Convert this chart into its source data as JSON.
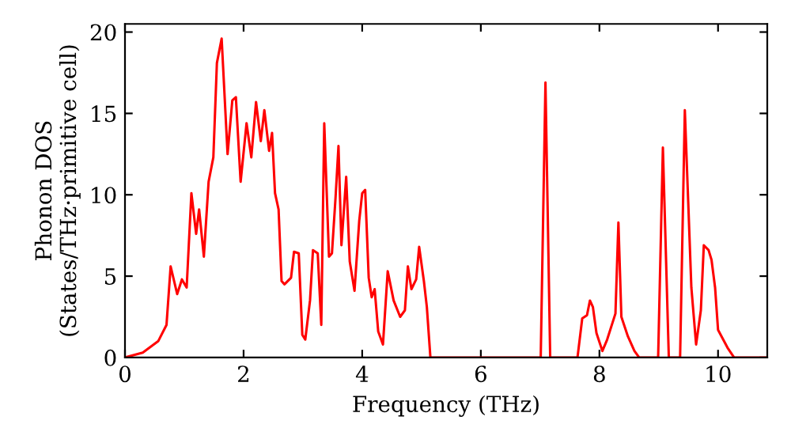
{
  "chart_data": {
    "type": "line",
    "xlabel": "Frequency (THz)",
    "ylabel": "Phonon DOS\n(States/THz·primitive cell)",
    "xlim": [
      0,
      10.83
    ],
    "ylim": [
      0,
      20.5
    ],
    "xticks": [
      0,
      2,
      4,
      6,
      8,
      10
    ],
    "yticks": [
      0,
      5,
      10,
      15,
      20
    ],
    "grid": false,
    "legend": false,
    "marker": "none",
    "line_style": "solid",
    "x": [
      0,
      0.3,
      0.56,
      0.7,
      0.77,
      0.88,
      0.96,
      1.04,
      1.12,
      1.2,
      1.25,
      1.33,
      1.41,
      1.49,
      1.55,
      1.63,
      1.73,
      1.81,
      1.87,
      1.95,
      2.05,
      2.13,
      2.21,
      2.29,
      2.35,
      2.43,
      2.48,
      2.53,
      2.59,
      2.64,
      2.69,
      2.8,
      2.85,
      2.93,
      2.99,
      3.04,
      3.12,
      3.17,
      3.25,
      3.31,
      3.36,
      3.44,
      3.49,
      3.55,
      3.6,
      3.65,
      3.73,
      3.79,
      3.87,
      3.95,
      4.0,
      4.05,
      4.11,
      4.16,
      4.21,
      4.27,
      4.35,
      4.43,
      4.53,
      4.64,
      4.72,
      4.77,
      4.83,
      4.91,
      4.96,
      5.04,
      5.09,
      5.15,
      7.01,
      7.09,
      7.17,
      7.63,
      7.71,
      7.79,
      7.84,
      7.89,
      7.95,
      8.05,
      8.13,
      8.27,
      8.32,
      8.37,
      8.48,
      8.59,
      8.67,
      8.99,
      9.07,
      9.17,
      9.36,
      9.44,
      9.55,
      9.63,
      9.71,
      9.76,
      9.84,
      9.89,
      9.95,
      10.0,
      10.16,
      10.27,
      10.83
    ],
    "series": [
      {
        "color": "#ff0000",
        "values": [
          0,
          0.3,
          1,
          2,
          5.6,
          3.9,
          4.8,
          4.3,
          10.1,
          7.6,
          9.1,
          6.2,
          10.8,
          12.3,
          18.1,
          19.6,
          12.5,
          15.8,
          16,
          10.8,
          14.4,
          12.3,
          15.7,
          13.3,
          15.2,
          12.7,
          13.8,
          10.1,
          9.1,
          4.7,
          4.5,
          4.9,
          6.5,
          6.4,
          1.4,
          1.1,
          3.5,
          6.6,
          6.4,
          2,
          14.4,
          6.2,
          6.4,
          9.8,
          13,
          6.9,
          11.1,
          5.9,
          4.1,
          8.4,
          10.1,
          10.3,
          4.9,
          3.7,
          4.2,
          1.6,
          0.8,
          5.3,
          3.5,
          2.5,
          2.9,
          5.6,
          4.2,
          4.8,
          6.8,
          4.7,
          3.1,
          0,
          0,
          16.9,
          0,
          0,
          2.4,
          2.6,
          3.5,
          3.1,
          1.5,
          0.4,
          1.1,
          2.7,
          8.3,
          2.5,
          1.3,
          0.4,
          0,
          0,
          12.9,
          0,
          0,
          15.2,
          4.3,
          0.8,
          2.9,
          6.9,
          6.6,
          6,
          4.3,
          1.7,
          0.6,
          0,
          0
        ]
      }
    ]
  }
}
